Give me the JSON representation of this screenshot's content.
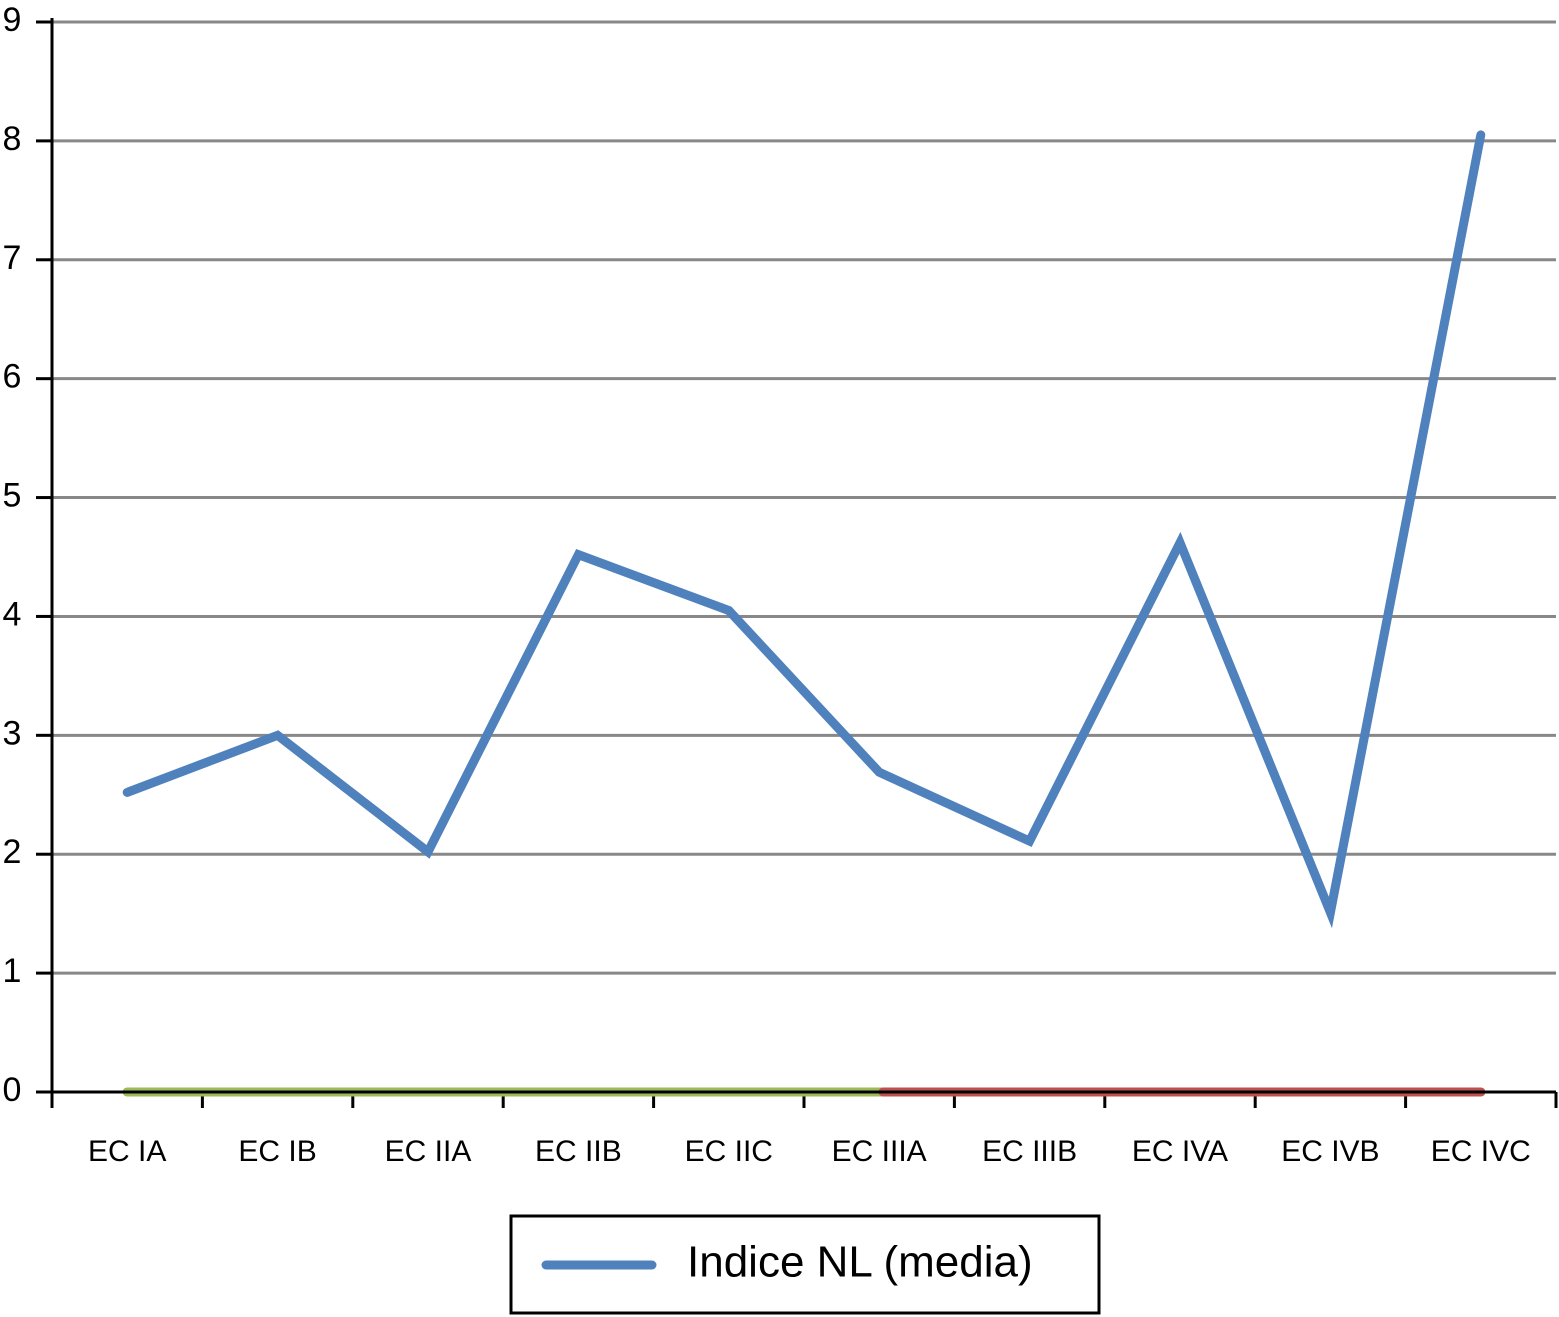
{
  "chart_data": {
    "type": "line",
    "categories": [
      "EC IA",
      "EC IB",
      "EC IIA",
      "EC IIB",
      "EC IIC",
      "EC IIIA",
      "EC IIIB",
      "EC IVA",
      "EC IVB",
      "EC IVC"
    ],
    "series": [
      {
        "name": "Indice NL (media)",
        "color": "#4f81bd",
        "values": [
          2.52,
          3.0,
          2.02,
          4.52,
          4.05,
          2.69,
          2.11,
          4.62,
          1.51,
          8.05
        ]
      }
    ],
    "ylim": [
      0,
      9
    ],
    "yticks": [
      0,
      1,
      2,
      3,
      4,
      5,
      6,
      7,
      8,
      9
    ],
    "grid": true
  }
}
